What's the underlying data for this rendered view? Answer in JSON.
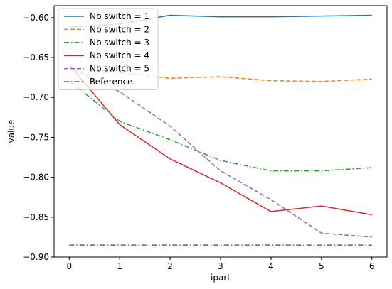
{
  "chart_data": {
    "type": "line",
    "title": "",
    "xlabel": "ipart",
    "ylabel": "value",
    "xlim": [
      -0.3,
      6.3
    ],
    "ylim": [
      -0.9,
      -0.585
    ],
    "x": [
      0,
      1,
      2,
      3,
      4,
      5,
      6
    ],
    "x_ticks": [
      0,
      1,
      2,
      3,
      4,
      5,
      6
    ],
    "x_tick_labels": [
      "0",
      "1",
      "2",
      "3",
      "4",
      "5",
      "6"
    ],
    "y_ticks": [
      -0.9,
      -0.85,
      -0.8,
      -0.75,
      -0.7,
      -0.65,
      -0.6
    ],
    "y_tick_labels": [
      "−0.90",
      "−0.85",
      "−0.80",
      "−0.75",
      "−0.70",
      "−0.65",
      "−0.60"
    ],
    "grid": false,
    "legend_position": "top-left",
    "series": [
      {
        "name": "Nb switch = 1",
        "color": "#1f77b4",
        "dash": "solid",
        "values": [
          -0.612,
          -0.608,
          -0.597,
          -0.599,
          -0.599,
          -0.598,
          -0.597
        ]
      },
      {
        "name": "Nb switch = 2",
        "color": "#ff7f0e",
        "dash": "dashed",
        "values": [
          -0.663,
          -0.669,
          -0.676,
          -0.674,
          -0.679,
          -0.68,
          -0.677
        ]
      },
      {
        "name": "Nb switch = 3",
        "color": "#2ca02c",
        "dash": "dashdot",
        "values": [
          -0.679,
          -0.73,
          -0.753,
          -0.779,
          -0.792,
          -0.792,
          -0.788
        ]
      },
      {
        "name": "Nb switch = 4",
        "color": "#d62728",
        "dash": "solid",
        "values": [
          -0.659,
          -0.734,
          -0.777,
          -0.807,
          -0.843,
          -0.836,
          -0.847
        ]
      },
      {
        "name": "Nb switch = 5",
        "color": "#9467bd",
        "dash": "dashed",
        "values": [
          -0.662,
          -0.693,
          -0.736,
          -0.792,
          -0.828,
          -0.87,
          -0.875
        ]
      },
      {
        "name": "Reference",
        "color": "#8c564b",
        "dash": "dashdot",
        "values": [
          -0.885,
          -0.885,
          -0.885,
          -0.885,
          -0.885,
          -0.885,
          -0.885
        ]
      }
    ]
  }
}
